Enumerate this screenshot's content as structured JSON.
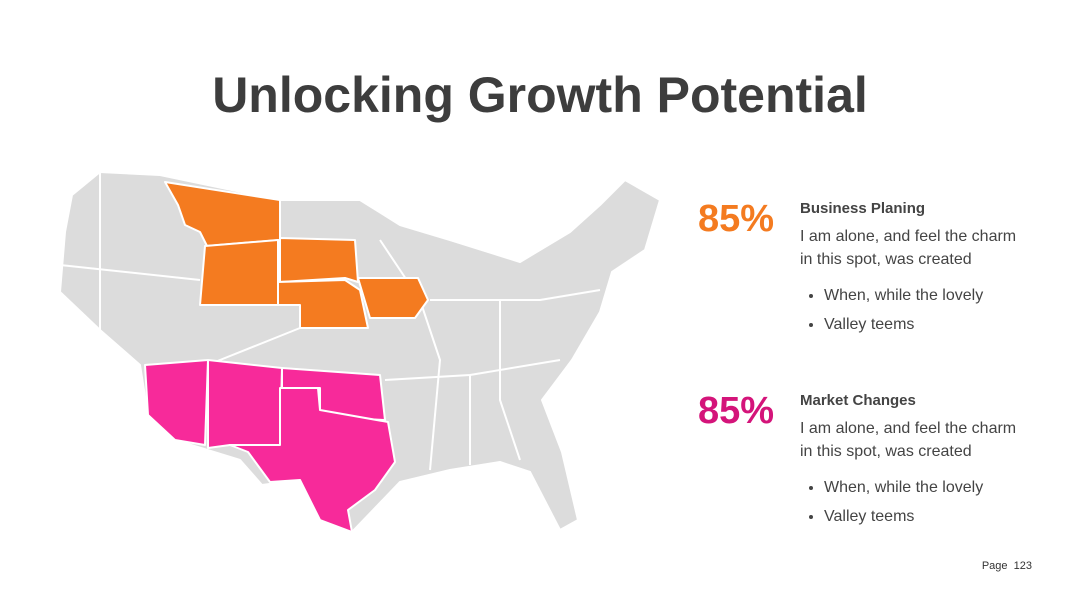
{
  "header": {
    "title": "Unlocking Growth Potential"
  },
  "items": [
    {
      "percent": "85%",
      "title": "Business Planing",
      "text": [
        "I am alone, and feel the charm",
        "in this spot, was created"
      ],
      "bullets": [
        "When, while the lovely",
        "Valley teems"
      ]
    },
    {
      "percent": "85%",
      "title": "Market Changes",
      "text": [
        "I am alone, and feel the charm",
        "in this spot, was created"
      ],
      "bullets": [
        "When, while the lovely",
        "Valley teems"
      ]
    }
  ],
  "footer": {
    "page": "Page  123"
  }
}
